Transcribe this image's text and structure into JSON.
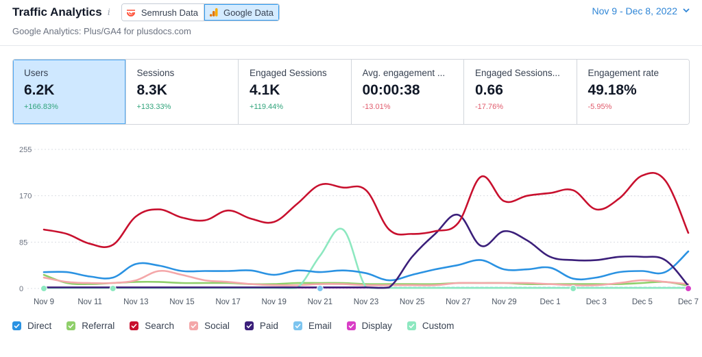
{
  "header": {
    "title": "Traffic Analytics",
    "info_glyph": "i",
    "source_tabs": [
      {
        "label": "Semrush Data",
        "icon": "semrush-logo-icon",
        "active": false,
        "color": "#ff4b33"
      },
      {
        "label": "Google Data",
        "icon": "google-analytics-icon",
        "active": true,
        "color": "#f9ab00"
      }
    ],
    "date_range": "Nov 9 - Dec 8, 2022",
    "subtitle": "Google Analytics: Plus/GA4 for plusdocs.com"
  },
  "metrics": [
    {
      "label": "Users",
      "value": "6.2K",
      "delta": "+166.83%",
      "trend": "up",
      "active": true
    },
    {
      "label": "Sessions",
      "value": "8.3K",
      "delta": "+133.33%",
      "trend": "up",
      "active": false
    },
    {
      "label": "Engaged Sessions",
      "value": "4.1K",
      "delta": "+119.44%",
      "trend": "up",
      "active": false
    },
    {
      "label": "Avg. engagement ...",
      "value": "00:00:38",
      "delta": "-13.01%",
      "trend": "down",
      "active": false
    },
    {
      "label": "Engaged Sessions...",
      "value": "0.66",
      "delta": "-17.76%",
      "trend": "down",
      "active": false
    },
    {
      "label": "Engagement rate",
      "value": "49.18%",
      "delta": "-5.95%",
      "trend": "down",
      "active": false
    }
  ],
  "chart_data": {
    "type": "line",
    "x": [
      "Nov 9",
      "Nov 10",
      "Nov 11",
      "Nov 12",
      "Nov 13",
      "Nov 14",
      "Nov 15",
      "Nov 16",
      "Nov 17",
      "Nov 18",
      "Nov 19",
      "Nov 20",
      "Nov 21",
      "Nov 22",
      "Nov 23",
      "Nov 24",
      "Nov 25",
      "Nov 26",
      "Nov 27",
      "Nov 28",
      "Nov 29",
      "Nov 30",
      "Dec 1",
      "Dec 2",
      "Dec 3",
      "Dec 4",
      "Dec 5",
      "Dec 6",
      "Dec 7"
    ],
    "x_ticks": [
      "Nov 9",
      "Nov 11",
      "Nov 13",
      "Nov 15",
      "Nov 17",
      "Nov 19",
      "Nov 21",
      "Nov 23",
      "Nov 25",
      "Nov 27",
      "Nov 29",
      "Dec 1",
      "Dec 3",
      "Dec 5",
      "Dec 7"
    ],
    "y_ticks": [
      "0",
      "85",
      "170",
      "255"
    ],
    "ylim": [
      0,
      255
    ],
    "grid": "horizontal-dashed",
    "legend_position": "bottom-left",
    "series": [
      {
        "name": "Direct",
        "color": "#2a92e2",
        "values": [
          30,
          30,
          22,
          20,
          45,
          42,
          32,
          32,
          32,
          33,
          25,
          33,
          30,
          33,
          28,
          15,
          25,
          35,
          43,
          52,
          35,
          35,
          38,
          18,
          20,
          30,
          32,
          30,
          68
        ]
      },
      {
        "name": "Referral",
        "color": "#8fcf6a",
        "values": [
          25,
          10,
          8,
          10,
          12,
          12,
          10,
          10,
          10,
          8,
          8,
          10,
          10,
          10,
          8,
          8,
          8,
          8,
          10,
          10,
          10,
          8,
          8,
          8,
          8,
          8,
          10,
          12,
          5
        ]
      },
      {
        "name": "Search",
        "color": "#c8102e",
        "values": [
          108,
          100,
          82,
          80,
          132,
          145,
          130,
          125,
          143,
          128,
          122,
          155,
          190,
          185,
          180,
          108,
          100,
          105,
          120,
          205,
          160,
          170,
          175,
          180,
          145,
          165,
          207,
          198,
          102
        ]
      },
      {
        "name": "Social",
        "color": "#f4a7a9",
        "values": [
          20,
          12,
          10,
          10,
          15,
          32,
          25,
          15,
          12,
          8,
          6,
          6,
          8,
          8,
          6,
          6,
          6,
          6,
          10,
          10,
          10,
          10,
          8,
          6,
          6,
          10,
          15,
          12,
          8
        ]
      },
      {
        "name": "Paid",
        "color": "#3b1f7a",
        "values": [
          2,
          2,
          2,
          2,
          2,
          2,
          2,
          2,
          2,
          2,
          2,
          2,
          2,
          2,
          2,
          2,
          58,
          100,
          135,
          78,
          105,
          88,
          58,
          52,
          52,
          58,
          58,
          52,
          5
        ]
      },
      {
        "name": "Email",
        "color": "#7cc4ef",
        "values": [
          2,
          2,
          2,
          2,
          2,
          2,
          2,
          2,
          2,
          2,
          2,
          2,
          2,
          2,
          2,
          2,
          2,
          2,
          2,
          2,
          2,
          2,
          2,
          2,
          2,
          2,
          2,
          2,
          2
        ]
      },
      {
        "name": "Display",
        "color": "#d93ec6",
        "values": [
          1,
          1,
          1,
          1,
          1,
          1,
          1,
          1,
          1,
          1,
          1,
          1,
          1,
          1,
          1,
          1,
          1,
          1,
          1,
          1,
          1,
          1,
          1,
          1,
          1,
          1,
          1,
          1,
          1
        ]
      },
      {
        "name": "Custom",
        "color": "#8de8c0",
        "values": [
          1,
          1,
          1,
          1,
          1,
          1,
          1,
          1,
          1,
          1,
          1,
          1,
          60,
          108,
          2,
          1,
          1,
          1,
          1,
          1,
          1,
          1,
          1,
          1,
          1,
          1,
          1,
          1,
          1
        ]
      }
    ]
  }
}
